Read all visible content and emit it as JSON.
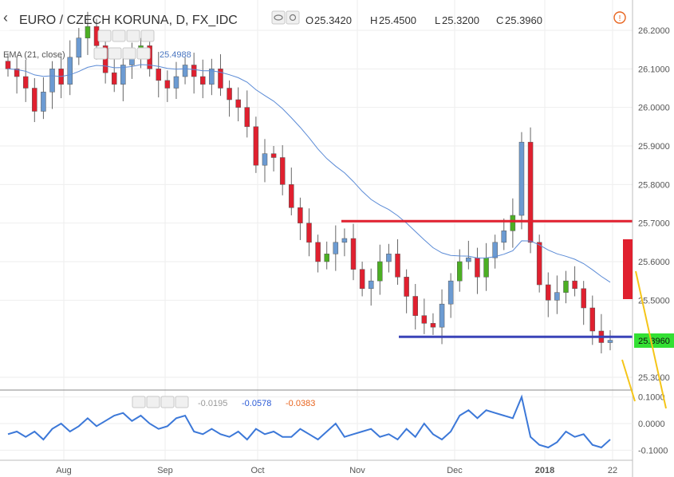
{
  "header": {
    "title": "EURO / CZECH KORUNA, D, FX_IDC",
    "ohlc": [
      {
        "key": "O",
        "value": "25.3420"
      },
      {
        "key": "H",
        "value": "25.4500"
      },
      {
        "key": "L",
        "value": "25.3200"
      },
      {
        "key": "C",
        "value": "25.3960"
      }
    ]
  },
  "ema_legend": {
    "label": "EMA (21, close)",
    "value": "25.4988"
  },
  "osc_legend": {
    "values": [
      "-0.0195",
      "-0.0578",
      "-0.0383"
    ],
    "colors": [
      "#999999",
      "#2a5ad6",
      "#e8641e"
    ]
  },
  "price_tag": {
    "value": "25.3960",
    "color": "#33e033"
  },
  "colors": {
    "up": "#4caf23",
    "up_alt": "#6c9bd2",
    "down": "#e0202f",
    "ema": "#5b8bd6",
    "resistance": "#e0202f",
    "support": "#3a44b8",
    "oscillator": "#3c78d8",
    "annotation": "#f5c518",
    "grid": "#eeeeee"
  },
  "chart_data": {
    "type": "candlestick",
    "title": "EURO / CZECH KORUNA, D, FX_IDC",
    "x_ticks": [
      "Aug",
      "Sep",
      "Oct",
      "Nov",
      "Dec",
      "2018",
      "22"
    ],
    "y_ticks": [
      "26.2000",
      "26.1000",
      "26.0000",
      "25.9000",
      "25.8000",
      "25.7000",
      "25.6000",
      "25.5000",
      "25.3960",
      "25.3000"
    ],
    "ylim": [
      25.26,
      26.25
    ],
    "close_series": [
      26.1,
      26.08,
      26.05,
      25.99,
      26.04,
      26.1,
      26.06,
      26.13,
      26.18,
      26.21,
      26.16,
      26.09,
      26.06,
      26.11,
      26.13,
      26.16,
      26.1,
      26.07,
      26.05,
      26.08,
      26.11,
      26.08,
      26.06,
      26.1,
      26.05,
      26.02,
      26.0,
      25.95,
      25.85,
      25.88,
      25.87,
      25.8,
      25.74,
      25.7,
      25.65,
      25.6,
      25.62,
      25.65,
      25.66,
      25.58,
      25.53,
      25.55,
      25.6,
      25.62,
      25.56,
      25.51,
      25.46,
      25.44,
      25.43,
      25.49,
      25.55,
      25.6,
      25.61,
      25.56,
      25.61,
      25.65,
      25.68,
      25.72,
      25.91,
      25.65,
      25.54,
      25.5,
      25.52,
      25.55,
      25.53,
      25.48,
      25.42,
      25.39,
      25.396
    ],
    "ema_series_last": 25.4988,
    "hlines": [
      {
        "label": "resistance",
        "value": 25.705
      },
      {
        "label": "support",
        "value": 25.405
      }
    ],
    "oscillator": {
      "yticks": [
        "0.1000",
        "0.0000",
        "-0.1000"
      ],
      "ylim": [
        -0.12,
        0.12
      ],
      "values": [
        -0.04,
        -0.03,
        -0.05,
        -0.03,
        -0.06,
        -0.02,
        0.0,
        -0.03,
        -0.01,
        0.02,
        -0.01,
        0.01,
        0.03,
        0.04,
        0.01,
        0.03,
        0.0,
        -0.02,
        -0.01,
        0.02,
        0.03,
        -0.03,
        -0.04,
        -0.02,
        -0.04,
        -0.05,
        -0.03,
        -0.06,
        -0.02,
        -0.04,
        -0.03,
        -0.05,
        -0.05,
        -0.02,
        -0.04,
        -0.06,
        -0.03,
        0.0,
        -0.05,
        -0.04,
        -0.03,
        -0.02,
        -0.05,
        -0.04,
        -0.06,
        -0.02,
        -0.05,
        0.0,
        -0.04,
        -0.06,
        -0.03,
        0.03,
        0.05,
        0.02,
        0.05,
        0.04,
        0.03,
        0.02,
        0.1,
        -0.05,
        -0.08,
        -0.09,
        -0.07,
        -0.03,
        -0.05,
        -0.04,
        -0.08,
        -0.09,
        -0.06
      ]
    }
  }
}
